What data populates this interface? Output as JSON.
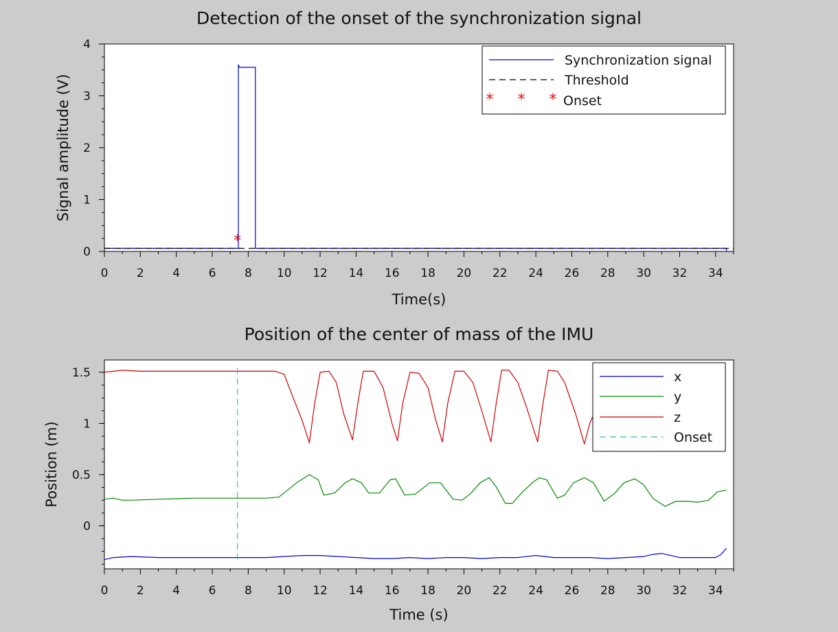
{
  "chart_data": [
    {
      "type": "line",
      "title": "Detection of the onset of the synchronization signal",
      "xlabel": "Time(s)",
      "ylabel": "Signal amplitude (V)",
      "xlim": [
        0,
        35
      ],
      "ylim": [
        0,
        4
      ],
      "x_ticks": [
        "0",
        "2",
        "4",
        "6",
        "8",
        "10",
        "12",
        "14",
        "16",
        "18",
        "20",
        "22",
        "24",
        "26",
        "28",
        "30",
        "32",
        "34"
      ],
      "y_ticks": [
        "0",
        "1",
        "2",
        "3",
        "4"
      ],
      "grid": false,
      "legend_position": "top-right",
      "series": [
        {
          "name": "Synchronization signal",
          "style": "solid",
          "color": "#0000cc",
          "x": [
            0,
            7.45,
            7.45,
            7.5,
            8.4,
            8.4,
            34.6,
            34.6
          ],
          "y": [
            0.06,
            0.06,
            3.6,
            3.55,
            3.55,
            0.06,
            0.06,
            0
          ]
        },
        {
          "name": "Threshold",
          "style": "dashed",
          "color": "#000000",
          "x": [
            0,
            35
          ],
          "y": [
            0.06,
            0.06
          ]
        },
        {
          "name": "Onset",
          "style": "marker",
          "color": "#ff0000",
          "x": [
            7.4
          ],
          "y": [
            0.22
          ]
        }
      ]
    },
    {
      "type": "line",
      "title": "Position of the center of mass of the IMU",
      "xlabel": "Time (s)",
      "ylabel": "Position (m)",
      "xlim": [
        0,
        35
      ],
      "ylim": [
        -0.42,
        1.62
      ],
      "x_ticks": [
        "0",
        "2",
        "4",
        "6",
        "8",
        "10",
        "12",
        "14",
        "16",
        "18",
        "20",
        "22",
        "24",
        "26",
        "28",
        "30",
        "32",
        "34"
      ],
      "y_ticks": [
        {
          "label": "0",
          "value": 0
        },
        {
          "label": "0.5",
          "value": 0.5
        },
        {
          "label": "1",
          "value": 1
        },
        {
          "label": "1.5",
          "value": 1.5
        }
      ],
      "grid": false,
      "legend_position": "top-right",
      "series": [
        {
          "name": "x",
          "style": "solid",
          "color": "#0000cc",
          "x": [
            0,
            0.5,
            1.5,
            3,
            5,
            7,
            9,
            10,
            11,
            12,
            13,
            14,
            15,
            16,
            17,
            18,
            19,
            20,
            21,
            22,
            23,
            24,
            25,
            26,
            27,
            28,
            29,
            30,
            30.5,
            31,
            31.5,
            32,
            33,
            34,
            34.3,
            34.6
          ],
          "y": [
            -0.33,
            -0.31,
            -0.3,
            -0.31,
            -0.31,
            -0.31,
            -0.31,
            -0.3,
            -0.29,
            -0.29,
            -0.3,
            -0.31,
            -0.32,
            -0.32,
            -0.31,
            -0.32,
            -0.31,
            -0.31,
            -0.32,
            -0.31,
            -0.31,
            -0.29,
            -0.31,
            -0.31,
            -0.31,
            -0.32,
            -0.31,
            -0.3,
            -0.28,
            -0.27,
            -0.29,
            -0.31,
            -0.31,
            -0.31,
            -0.28,
            -0.22
          ]
        },
        {
          "name": "y",
          "style": "solid",
          "color": "#008800",
          "x": [
            0,
            0.5,
            1,
            1.5,
            3,
            5,
            7,
            9,
            9.7,
            10.2,
            10.7,
            11.4,
            11.9,
            12.2,
            12.8,
            13.4,
            13.8,
            14.3,
            14.7,
            15.3,
            15.9,
            16.2,
            16.7,
            17.3,
            18.1,
            18.7,
            19.4,
            19.9,
            20.4,
            20.9,
            21.4,
            21.8,
            22.3,
            22.7,
            23.2,
            23.8,
            24.2,
            24.6,
            25.2,
            25.6,
            26.1,
            26.7,
            27.2,
            27.8,
            28.4,
            28.9,
            29.5,
            30,
            30.5,
            31.2,
            31.8,
            32.4,
            33,
            33.6,
            34.1,
            34.6
          ],
          "y": [
            0.26,
            0.27,
            0.25,
            0.25,
            0.26,
            0.27,
            0.27,
            0.27,
            0.28,
            0.35,
            0.42,
            0.5,
            0.45,
            0.3,
            0.32,
            0.42,
            0.46,
            0.42,
            0.32,
            0.32,
            0.45,
            0.46,
            0.3,
            0.31,
            0.42,
            0.42,
            0.26,
            0.25,
            0.32,
            0.42,
            0.47,
            0.38,
            0.22,
            0.22,
            0.32,
            0.42,
            0.47,
            0.45,
            0.27,
            0.3,
            0.42,
            0.47,
            0.42,
            0.24,
            0.32,
            0.42,
            0.46,
            0.4,
            0.27,
            0.19,
            0.24,
            0.24,
            0.23,
            0.25,
            0.33,
            0.35
          ]
        },
        {
          "name": "z",
          "style": "solid",
          "color": "#cc0000",
          "x": [
            0,
            0.5,
            1,
            2,
            4,
            6,
            8,
            9.5,
            10,
            10.5,
            11,
            11.4,
            11.7,
            12,
            12.5,
            12.9,
            13.3,
            13.8,
            14.1,
            14.4,
            15,
            15.5,
            16,
            16.3,
            16.6,
            17,
            17.5,
            18,
            18.4,
            18.8,
            19.1,
            19.5,
            20,
            20.5,
            21,
            21.5,
            21.8,
            22.1,
            22.5,
            23,
            23.5,
            24.1,
            24.4,
            24.7,
            25.2,
            25.6,
            26.2,
            26.7,
            27,
            27.5
          ],
          "y": [
            1.5,
            1.51,
            1.52,
            1.51,
            1.51,
            1.51,
            1.51,
            1.51,
            1.48,
            1.25,
            1.03,
            0.81,
            1.2,
            1.5,
            1.51,
            1.4,
            1.1,
            0.84,
            1.2,
            1.51,
            1.51,
            1.35,
            1.0,
            0.83,
            1.2,
            1.5,
            1.49,
            1.35,
            1.05,
            0.82,
            1.2,
            1.51,
            1.51,
            1.4,
            1.12,
            0.82,
            1.2,
            1.52,
            1.52,
            1.4,
            1.15,
            0.82,
            1.2,
            1.52,
            1.51,
            1.4,
            1.1,
            0.8,
            1.0,
            1.2
          ]
        },
        {
          "name": "Onset",
          "style": "dashed",
          "color": "#33bbbb",
          "x": [
            7.4,
            7.4
          ],
          "y": [
            -0.33,
            1.55
          ]
        }
      ]
    }
  ]
}
